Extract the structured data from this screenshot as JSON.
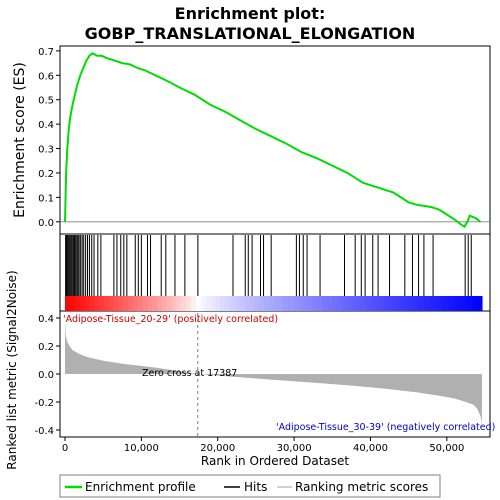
{
  "chart_data": {
    "type": "line",
    "title": "Enrichment plot:\nGOBP_TRANSLATIONAL_ELONGATION",
    "title_lines": [
      "Enrichment plot:",
      "GOBP_TRANSLATIONAL_ELONGATION"
    ],
    "xlabel": "Rank in Ordered Dataset",
    "xlim": [
      0,
      55000
    ],
    "x_ticks": [
      "0",
      "10,000",
      "20,000",
      "30,000",
      "40,000",
      "50,000"
    ],
    "x_tick_values": [
      0,
      10000,
      20000,
      30000,
      40000,
      50000
    ],
    "top_panel": {
      "ylabel": "Enrichment score (ES)",
      "ylim": [
        -0.05,
        0.72
      ],
      "y_ticks": [
        "0.0",
        "0.1",
        "0.2",
        "0.3",
        "0.4",
        "0.5",
        "0.6",
        "0.7"
      ],
      "y_tick_values": [
        0,
        0.1,
        0.2,
        0.3,
        0.4,
        0.5,
        0.6,
        0.7
      ],
      "series": [
        {
          "name": "Enrichment profile",
          "color": "#00dd00",
          "x": [
            0,
            150,
            300,
            500,
            700,
            1000,
            1300,
            1600,
            2000,
            2400,
            2800,
            3200,
            3600,
            4200,
            4800,
            5500,
            6500,
            7500,
            8500,
            9500,
            10500,
            11500,
            12500,
            13500,
            15000,
            17000,
            19000,
            21000,
            23000,
            25000,
            27000,
            29000,
            31000,
            33000,
            35000,
            37000,
            38000,
            39000,
            40000,
            41000,
            42000,
            43000,
            44000,
            45000,
            46000,
            47000,
            48000,
            49000,
            50000,
            51000,
            51800,
            52300,
            52700,
            53000,
            53400,
            53800,
            54400
          ],
          "values": [
            0.0,
            0.2,
            0.3,
            0.38,
            0.43,
            0.48,
            0.52,
            0.56,
            0.6,
            0.63,
            0.66,
            0.68,
            0.69,
            0.68,
            0.68,
            0.67,
            0.66,
            0.65,
            0.645,
            0.63,
            0.62,
            0.605,
            0.59,
            0.575,
            0.55,
            0.52,
            0.48,
            0.45,
            0.415,
            0.38,
            0.35,
            0.32,
            0.285,
            0.26,
            0.23,
            0.2,
            0.18,
            0.16,
            0.15,
            0.14,
            0.13,
            0.12,
            0.1,
            0.08,
            0.07,
            0.065,
            0.06,
            0.05,
            0.03,
            0.01,
            -0.01,
            -0.02,
            0.0,
            0.025,
            0.02,
            0.015,
            0.0
          ]
        }
      ]
    },
    "hits": [
      80,
      200,
      300,
      420,
      550,
      680,
      820,
      950,
      1100,
      1250,
      1400,
      1550,
      1700,
      1850,
      2050,
      2250,
      2450,
      2700,
      2950,
      3200,
      3500,
      3800,
      4300,
      4700,
      6400,
      6800,
      7300,
      7700,
      8100,
      9200,
      9600,
      10000,
      10800,
      11200,
      12600,
      13200,
      14400,
      15700,
      17400,
      22000,
      23600,
      24000,
      24500,
      25600,
      26000,
      27000,
      30300,
      30700,
      31200,
      31700,
      33400,
      36600,
      38000,
      38800,
      39300,
      40300,
      41000,
      42500,
      44500,
      45500,
      46300,
      47000,
      48200,
      52400,
      52800,
      53200
    ],
    "rank_metric": {
      "ylabel": "Ranked list metric (Signal2Noise)",
      "ylim": [
        -0.45,
        0.45
      ],
      "y_ticks": [
        "0.4",
        "0.2",
        "0.0",
        "-0.2",
        "-0.4"
      ],
      "y_tick_values": [
        0.4,
        0.2,
        0.0,
        -0.2,
        -0.4
      ],
      "zero_cross_rank": 17387,
      "x": [
        0,
        100,
        300,
        600,
        1000,
        2000,
        3000,
        5000,
        8000,
        12000,
        17387,
        22000,
        27000,
        32000,
        37000,
        42000,
        46000,
        49000,
        51000,
        52500,
        53500,
        54000,
        54400,
        54600
      ],
      "values": [
        0.38,
        0.27,
        0.23,
        0.2,
        0.17,
        0.14,
        0.12,
        0.095,
        0.07,
        0.045,
        0.0,
        -0.02,
        -0.04,
        -0.06,
        -0.08,
        -0.105,
        -0.13,
        -0.155,
        -0.175,
        -0.2,
        -0.22,
        -0.25,
        -0.3,
        -0.35
      ]
    },
    "annotations": {
      "positive": "'Adipose-Tissue_20-29' (positively correlated)",
      "negative": "'Adipose-Tissue_30-39' (negatively correlated)",
      "zero_cross": "Zero cross at 17387"
    },
    "legend": {
      "placement": "bottom",
      "items": [
        {
          "label": "Enrichment profile",
          "color": "#00dd00"
        },
        {
          "label": "Hits",
          "color": "#000000"
        },
        {
          "label": "Ranking metric scores",
          "color": "#c0c0c0"
        }
      ]
    },
    "colors": {
      "profile": "#00dd00",
      "hits": "#000000",
      "metric_fill": "#b0b0b0",
      "heat_red": "#ff0000",
      "heat_blue": "#0000ff",
      "zero_line": "#808080"
    }
  }
}
